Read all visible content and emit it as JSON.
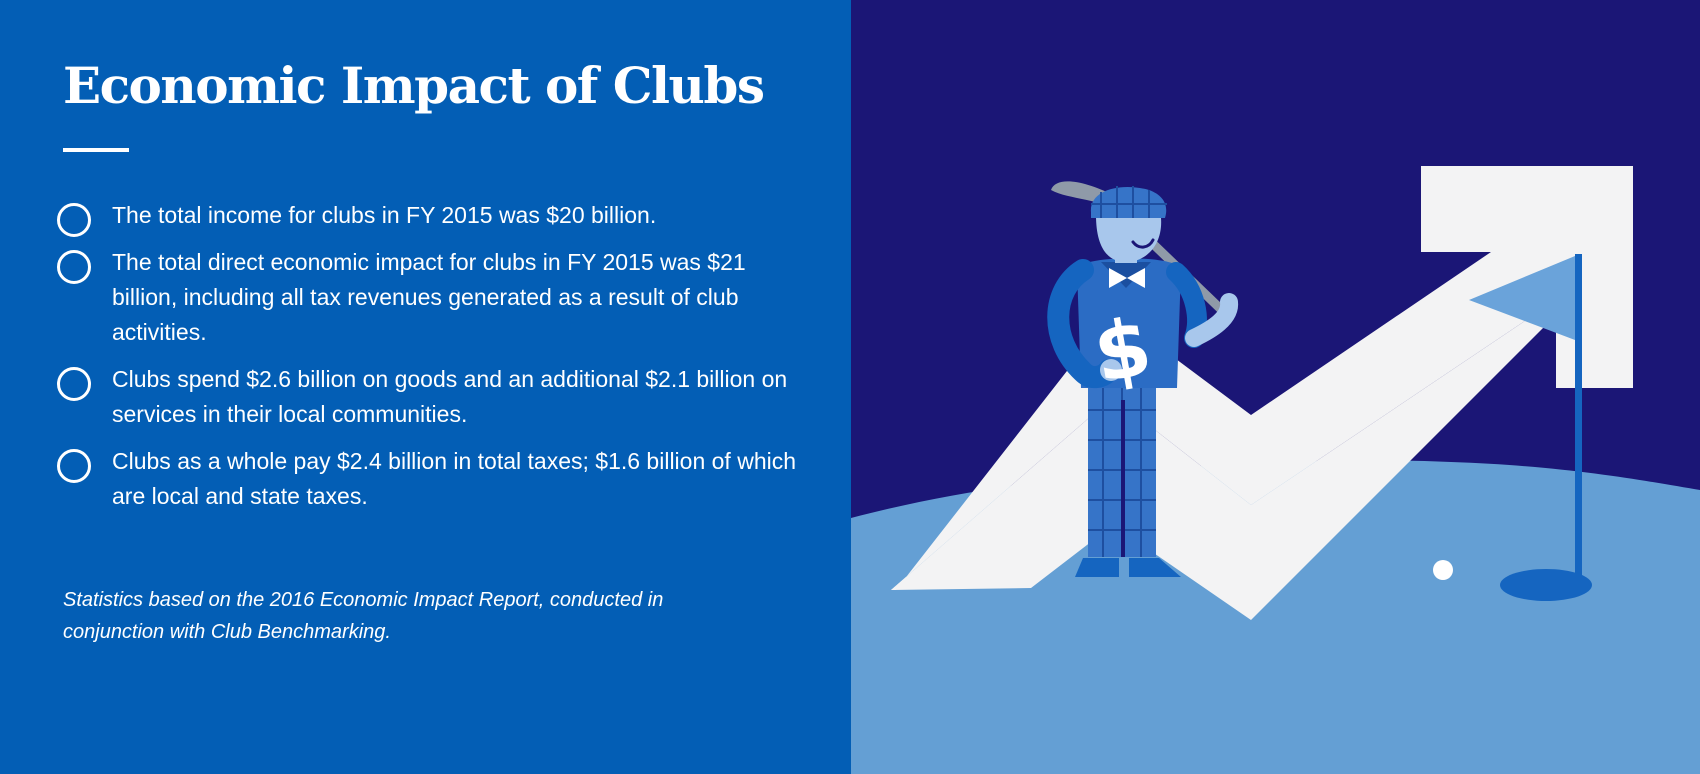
{
  "header": {
    "title": "Economic Impact of Clubs"
  },
  "bullets": [
    {
      "text": "The total income for clubs in FY 2015 was $20 billion."
    },
    {
      "text": "The total direct economic impact for clubs in FY 2015 was $21 billion, including all tax revenues generated as a result of club activities."
    },
    {
      "text": "Clubs spend $2.6 billion on goods and an additional $2.1 billion on services in their local communities."
    },
    {
      "text": "Clubs as a whole pay $2.4 billion in total taxes; $1.6 billion of which are local and state taxes."
    }
  ],
  "footnote": "Statistics based on the 2016 Economic Impact Report, conducted in conjunction with Club Benchmarking.",
  "illustration": {
    "sign_glyph": "$",
    "colors": {
      "left_panel": "#035eb5",
      "night_sky": "#1b1676",
      "hill": "#649fd4",
      "arrow": "#f3f3f4",
      "flag": "#6aa3da",
      "pole": "#1565c0"
    }
  }
}
